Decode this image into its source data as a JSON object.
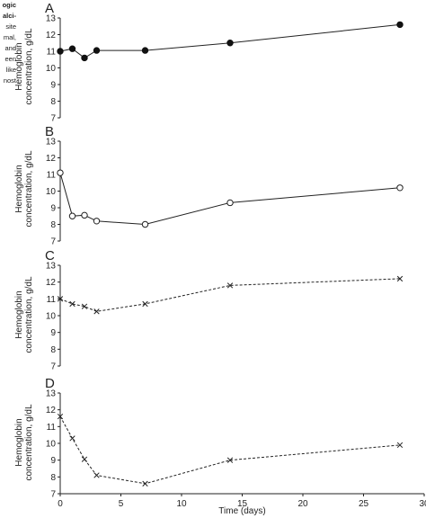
{
  "margin_text": [
    "ogic",
    "alci-",
    "site",
    "mal,",
    "and",
    "een",
    "like",
    "nost"
  ],
  "chart_data": [
    {
      "type": "line",
      "panel": "A",
      "ylabel": [
        "Hemoglobin",
        "concentration, g/dL"
      ],
      "ylim": [
        7,
        13
      ],
      "xlim": [
        0,
        30
      ],
      "yticks": [
        7,
        8,
        9,
        10,
        11,
        12,
        13
      ],
      "marker": "filled-circle",
      "line_style": "solid",
      "series": [
        {
          "x": [
            0,
            1,
            2,
            3,
            7,
            14,
            28
          ],
          "values": [
            11.0,
            11.15,
            10.6,
            11.05,
            11.05,
            11.5,
            12.6
          ]
        }
      ]
    },
    {
      "type": "line",
      "panel": "B",
      "ylabel": [
        "Hemoglobin",
        "concentration, g/dL"
      ],
      "ylim": [
        7,
        13
      ],
      "xlim": [
        0,
        30
      ],
      "yticks": [
        7,
        8,
        9,
        10,
        11,
        12,
        13
      ],
      "marker": "open-circle",
      "line_style": "solid",
      "series": [
        {
          "x": [
            0,
            1,
            2,
            3,
            7,
            14,
            28
          ],
          "values": [
            11.1,
            8.5,
            8.55,
            8.2,
            8.0,
            9.3,
            10.2
          ]
        }
      ]
    },
    {
      "type": "line",
      "panel": "C",
      "ylabel": [
        "Hemoglobin",
        "concentration, g/dL"
      ],
      "ylim": [
        7,
        13
      ],
      "xlim": [
        0,
        30
      ],
      "yticks": [
        7,
        8,
        9,
        10,
        11,
        12,
        13
      ],
      "marker": "x",
      "line_style": "dashed",
      "series": [
        {
          "x": [
            0,
            1,
            2,
            3,
            7,
            14,
            28
          ],
          "values": [
            11.0,
            10.7,
            10.55,
            10.25,
            10.7,
            11.8,
            12.2
          ]
        }
      ]
    },
    {
      "type": "line",
      "panel": "D",
      "ylabel": [
        "Hemoglobin",
        "concentration, g/dL"
      ],
      "ylim": [
        7,
        13
      ],
      "xlim": [
        0,
        30
      ],
      "yticks": [
        7,
        8,
        9,
        10,
        11,
        12,
        13
      ],
      "xticks": [
        0,
        5,
        10,
        15,
        20,
        25,
        30
      ],
      "xlabel": "Time (days)",
      "marker": "x",
      "line_style": "dashed",
      "series": [
        {
          "x": [
            0,
            1,
            2,
            3,
            7,
            14,
            28
          ],
          "values": [
            11.6,
            10.3,
            9.05,
            8.1,
            7.6,
            9.0,
            9.9
          ]
        }
      ]
    }
  ]
}
